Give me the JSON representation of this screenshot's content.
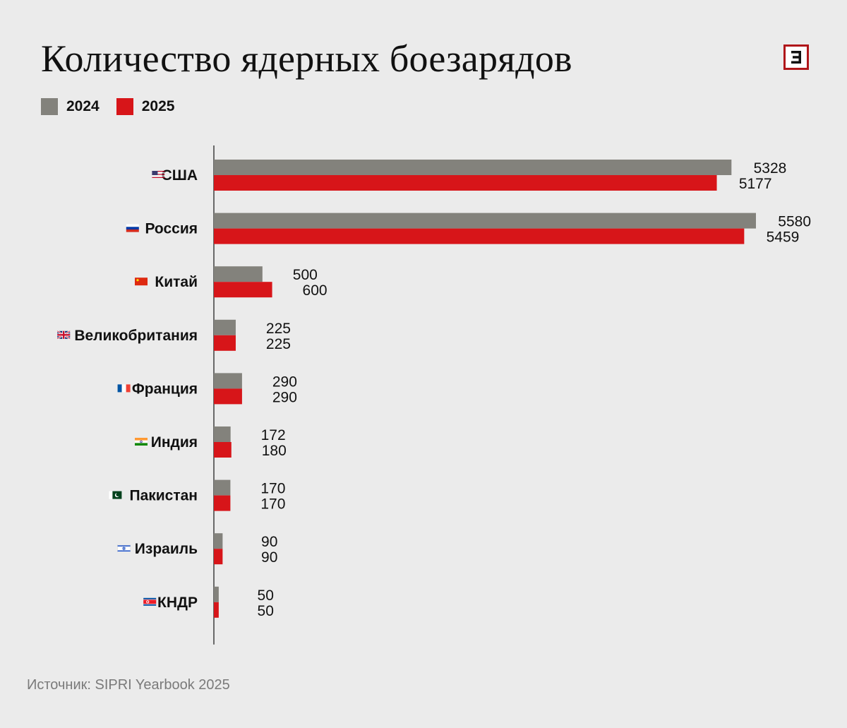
{
  "title": "Количество ядерных боезарядов",
  "source": "Источник: SIPRI Yearbook 2025",
  "logo_icon": "e-letter-icon",
  "colors": {
    "background": "#ebebeb",
    "series_2024": "#83827c",
    "series_2025": "#d71519",
    "logo_border": "#b0161a"
  },
  "legend": [
    {
      "label": "2024",
      "color": "#83827c"
    },
    {
      "label": "2025",
      "color": "#d71519"
    }
  ],
  "chart_data": {
    "type": "bar",
    "orientation": "horizontal",
    "title": "Количество ядерных боезарядов",
    "categories": [
      "США",
      "Россия",
      "Китай",
      "Великобритания",
      "Франция",
      "Индия",
      "Пакистан",
      "Израиль",
      "КНДР"
    ],
    "category_icons": [
      "flag-usa-icon",
      "flag-russia-icon",
      "flag-china-icon",
      "flag-uk-icon",
      "flag-france-icon",
      "flag-india-icon",
      "flag-pakistan-icon",
      "flag-israel-icon",
      "flag-north-korea-icon"
    ],
    "series": [
      {
        "name": "2024",
        "color": "#83827c",
        "values": [
          5328,
          5580,
          500,
          225,
          290,
          172,
          170,
          90,
          50
        ]
      },
      {
        "name": "2025",
        "color": "#d71519",
        "values": [
          5177,
          5459,
          600,
          225,
          290,
          180,
          170,
          90,
          50
        ]
      }
    ],
    "xlim": [
      0,
      5600
    ],
    "grid": false,
    "legend_position": "top-left",
    "data_labels": true
  }
}
